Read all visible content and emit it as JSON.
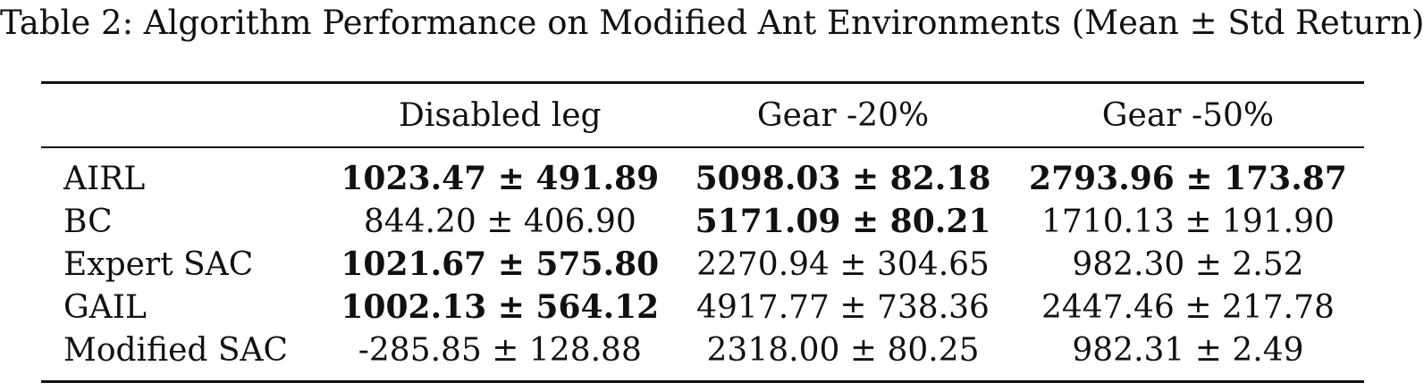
{
  "caption": "Table 2: Algorithm Performance on Modified Ant Environments (Mean ± Std Return)",
  "table": {
    "headers": [
      "",
      "Disabled leg",
      "Gear -20%",
      "Gear -50%"
    ],
    "rows": [
      {
        "method": "AIRL",
        "cells": [
          {
            "text": "1023.47 ± 491.89",
            "bold": true
          },
          {
            "text": "5098.03 ± 82.18",
            "bold": true
          },
          {
            "text": "2793.96 ± 173.87",
            "bold": true
          }
        ]
      },
      {
        "method": "BC",
        "cells": [
          {
            "text": "844.20 ± 406.90",
            "bold": false
          },
          {
            "text": "5171.09 ± 80.21",
            "bold": true
          },
          {
            "text": "1710.13 ± 191.90",
            "bold": false
          }
        ]
      },
      {
        "method": "Expert SAC",
        "cells": [
          {
            "text": "1021.67 ± 575.80",
            "bold": true
          },
          {
            "text": "2270.94 ± 304.65",
            "bold": false
          },
          {
            "text": "982.30 ± 2.52",
            "bold": false
          }
        ]
      },
      {
        "method": "GAIL",
        "cells": [
          {
            "text": "1002.13 ± 564.12",
            "bold": true
          },
          {
            "text": "4917.77 ± 738.36",
            "bold": false
          },
          {
            "text": "2447.46 ± 217.78",
            "bold": false
          }
        ]
      },
      {
        "method": "Modified SAC",
        "cells": [
          {
            "text": "-285.85 ± 128.88",
            "bold": false
          },
          {
            "text": "2318.00 ± 80.25",
            "bold": false
          },
          {
            "text": "982.31 ± 2.49",
            "bold": false
          }
        ]
      }
    ]
  }
}
